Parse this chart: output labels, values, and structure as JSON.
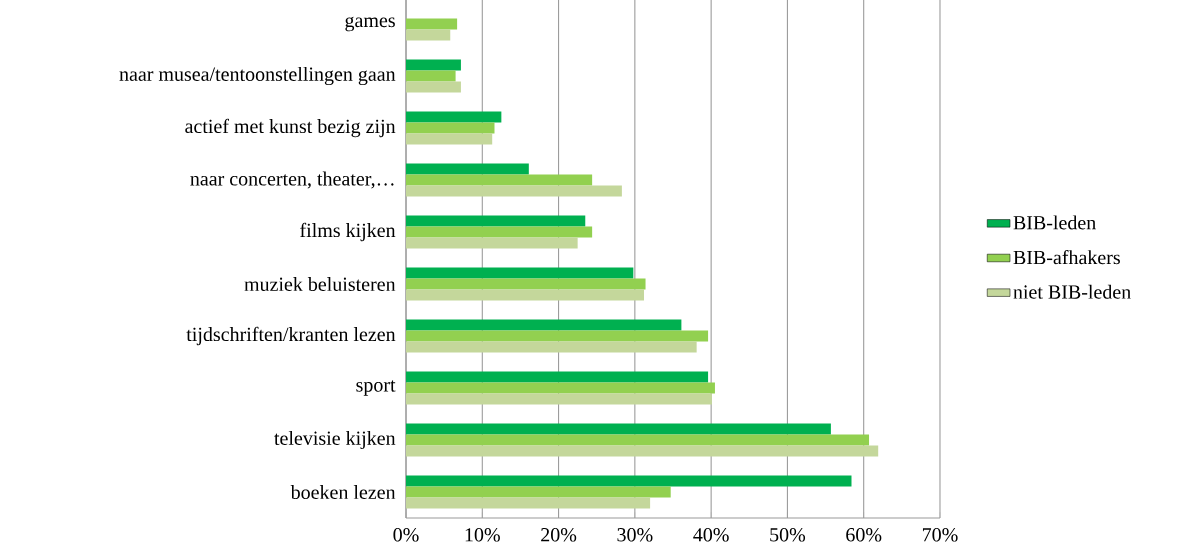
{
  "chart_data": {
    "type": "bar",
    "orientation": "horizontal",
    "categories": [
      "games",
      "naar musea/tentoonstellingen gaan",
      "actief met kunst bezig zijn",
      "naar concerten, theater,…",
      "films kijken",
      "muziek beluisteren",
      "tijdschriften/kranten lezen",
      "sport",
      "televisie kijken",
      "boeken lezen"
    ],
    "series": [
      {
        "name": "BIB-leden",
        "color": "#00b050",
        "values": [
          null,
          7.2,
          12.5,
          16.1,
          23.5,
          29.8,
          36.1,
          39.6,
          55.7,
          58.4
        ]
      },
      {
        "name": "BIB-afhakers",
        "color": "#92d050",
        "values": [
          6.7,
          6.5,
          11.6,
          24.4,
          24.4,
          31.4,
          39.6,
          40.5,
          60.7,
          34.7
        ]
      },
      {
        "name": "niet BIB-leden",
        "color": "#c4d79b",
        "values": [
          5.8,
          7.2,
          11.3,
          28.3,
          22.5,
          31.2,
          38.1,
          40.1,
          61.9,
          32.0
        ]
      }
    ],
    "xlim": [
      0,
      70
    ],
    "xticks": [
      {
        "value": 0,
        "label": "0%"
      },
      {
        "value": 10,
        "label": "10%"
      },
      {
        "value": 20,
        "label": "20%"
      },
      {
        "value": 30,
        "label": "30%"
      },
      {
        "value": 40,
        "label": "40%"
      },
      {
        "value": 50,
        "label": "50%"
      },
      {
        "value": 60,
        "label": "60%"
      },
      {
        "value": 70,
        "label": "70%"
      }
    ],
    "grid": "x",
    "legend": "right"
  }
}
